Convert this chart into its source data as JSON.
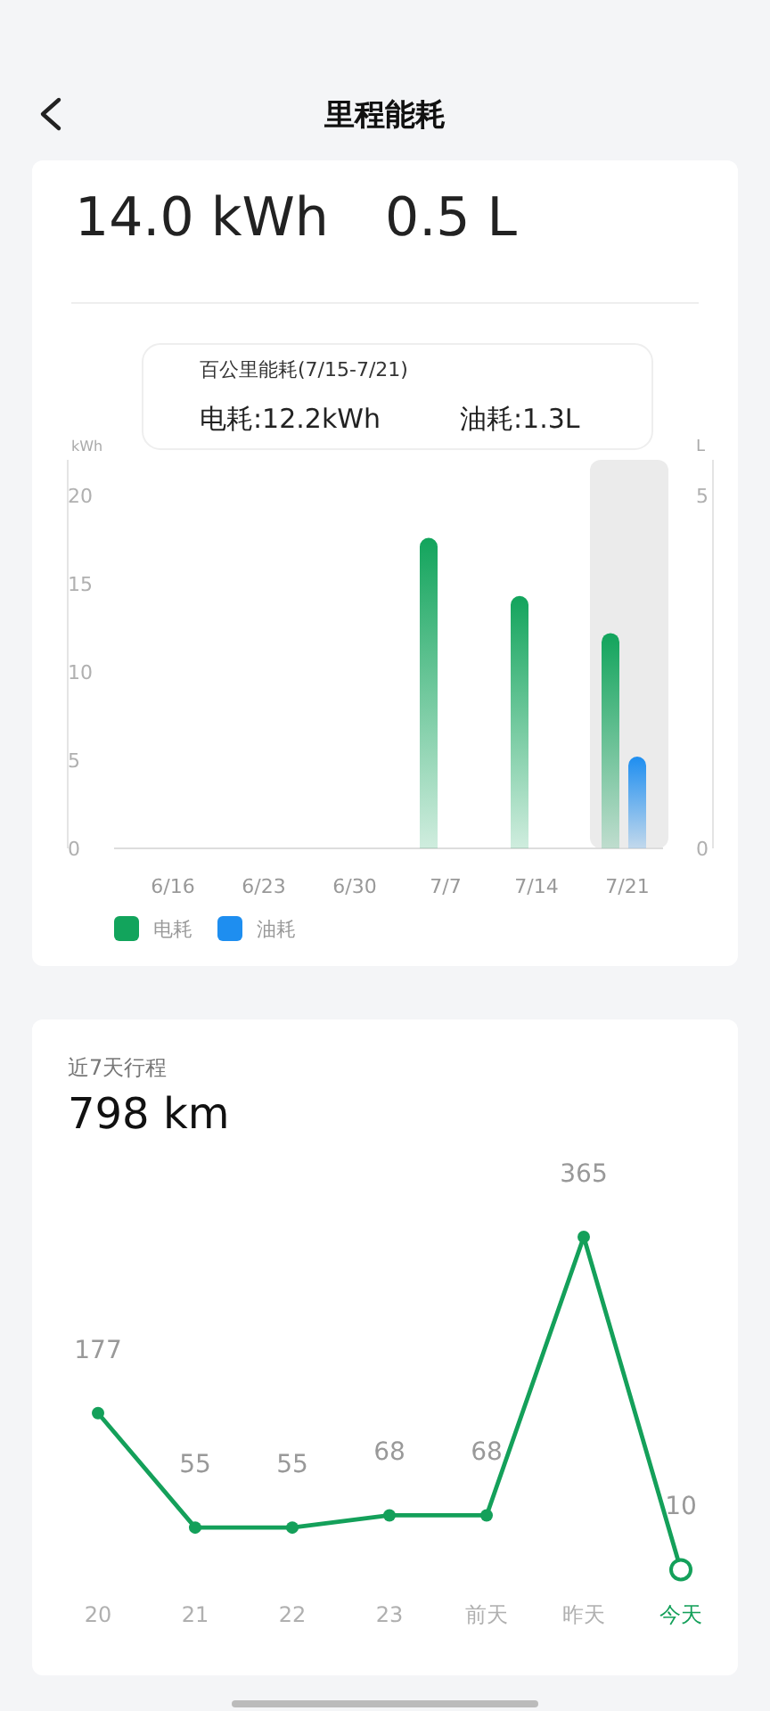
{
  "chart_data": [
    {
      "type": "bar",
      "title": "里程能耗",
      "annotations": [
        "14.0 kWh",
        "0.5 L",
        "百公里能耗(7/15-7/21)",
        "电耗:12.2kWh",
        "油耗:1.3L"
      ],
      "categories": [
        "6/16",
        "6/23",
        "6/30",
        "7/7",
        "7/14",
        "7/21"
      ],
      "series": [
        {
          "name": "电耗",
          "color": "#12a45c",
          "values": [
            null,
            null,
            null,
            17.6,
            14.3,
            12.2
          ]
        },
        {
          "name": "油耗",
          "color": "#1e8ef0",
          "axis": "y2",
          "values": [
            null,
            null,
            null,
            null,
            null,
            1.3
          ]
        }
      ],
      "ylabel": "kWh",
      "y2label": "L",
      "ylim": [
        0,
        20
      ],
      "yticks": [
        0,
        5,
        10,
        15,
        20
      ],
      "y2lim": [
        0,
        5
      ],
      "y2ticks": [
        0,
        5
      ],
      "bands": [
        {
          "axis": "x",
          "from": "7/21",
          "to": "7/21",
          "color": "#ebebeb"
        }
      ],
      "legend": "bottom"
    },
    {
      "type": "line",
      "title": "近7天行程",
      "subtitle": "798 km",
      "categories": [
        "20",
        "21",
        "22",
        "23",
        "前天",
        "昨天",
        "今天"
      ],
      "values": [
        177,
        55,
        55,
        68,
        68,
        365,
        10
      ],
      "color": "#14a05a",
      "marker": "circle",
      "data_labels": true
    }
  ]
}
